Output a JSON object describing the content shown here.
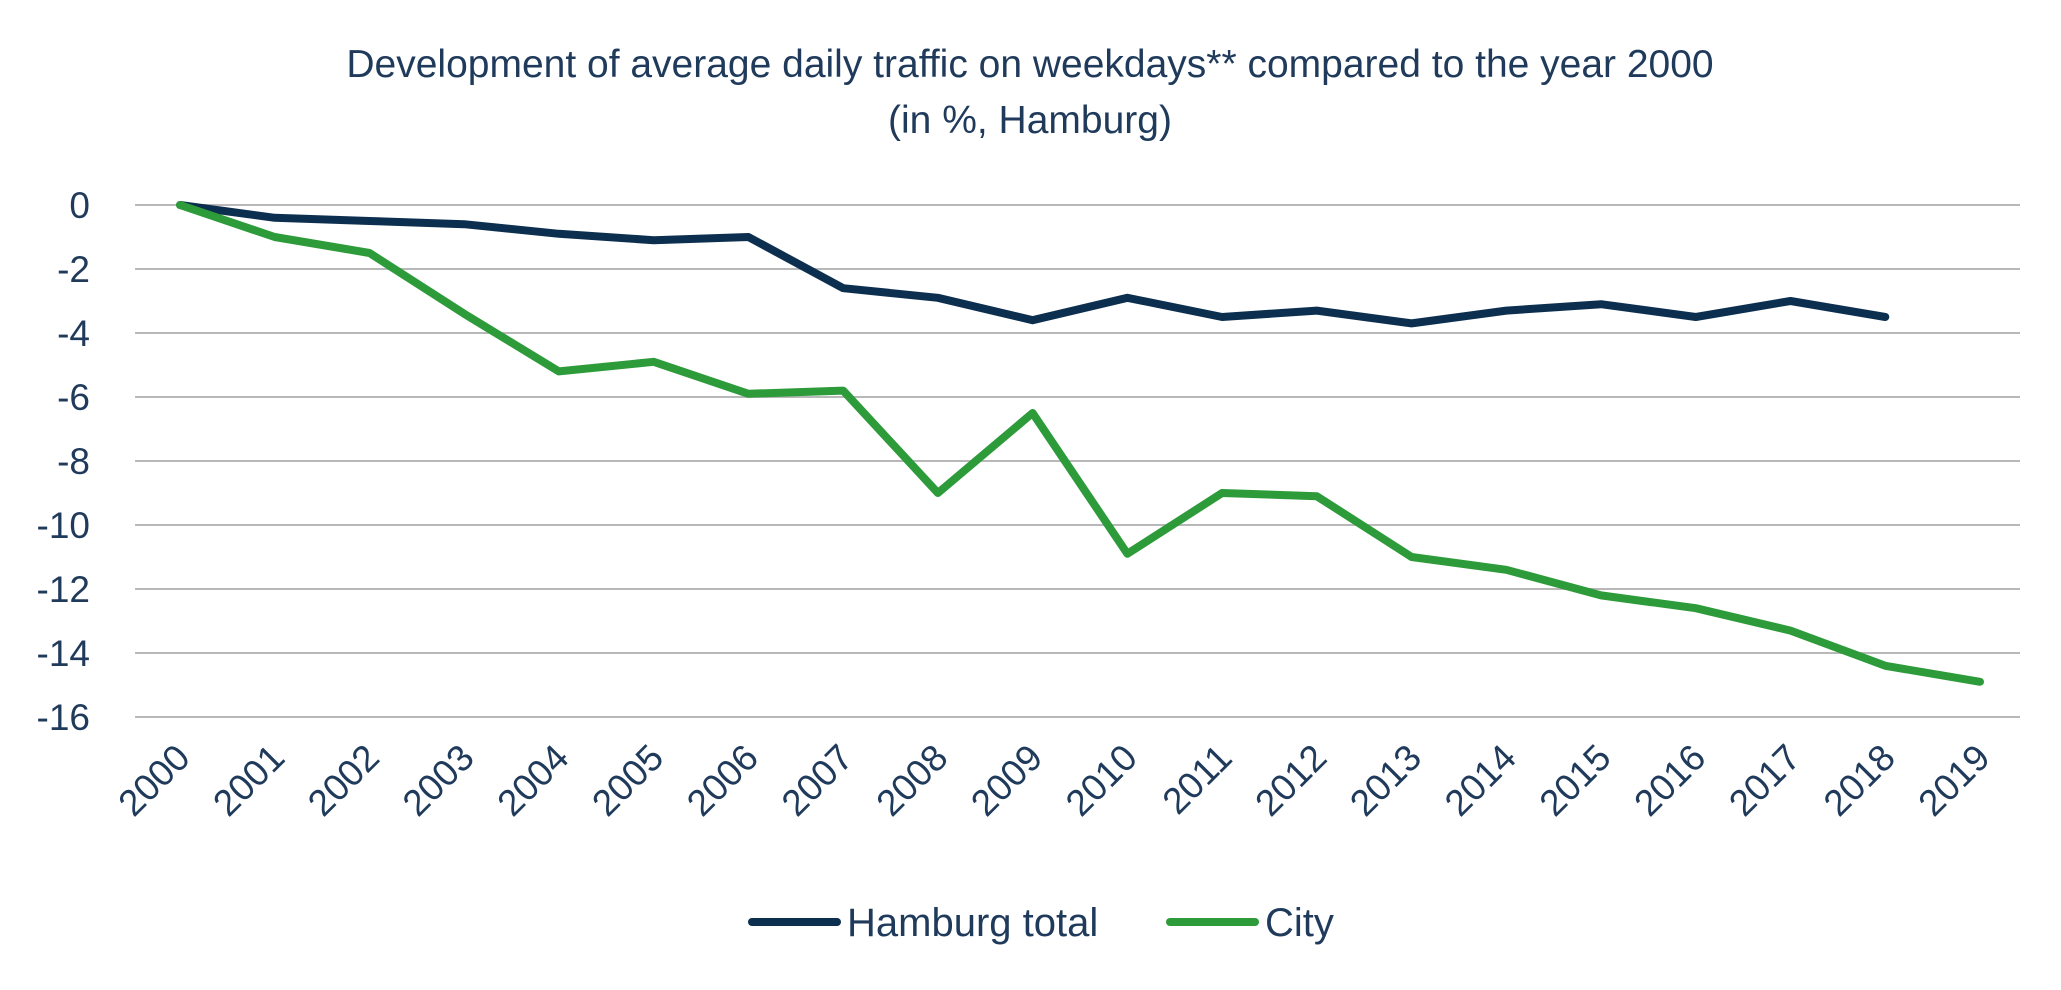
{
  "chart_data": {
    "type": "line",
    "title": "Development of average daily traffic on weekdays** compared to the year 2000",
    "subtitle": "(in %, Hamburg)",
    "xlabel": "",
    "ylabel": "",
    "x": [
      "2000",
      "2001",
      "2002",
      "2003",
      "2004",
      "2005",
      "2006",
      "2007",
      "2008",
      "2009",
      "2010",
      "2011",
      "2012",
      "2013",
      "2014",
      "2015",
      "2016",
      "2017",
      "2018",
      "2019"
    ],
    "ylim": [
      -16,
      0
    ],
    "yticks": [
      0,
      -2,
      -4,
      -6,
      -8,
      -10,
      -12,
      -14,
      -16
    ],
    "grid": true,
    "legend_position": "bottom",
    "series": [
      {
        "name": "Hamburg total",
        "color": "#0d2f4f",
        "values": [
          0,
          -0.4,
          -0.5,
          -0.6,
          -0.9,
          -1.1,
          -1.0,
          -2.6,
          -2.9,
          -3.6,
          -2.9,
          -3.5,
          -3.3,
          -3.7,
          -3.3,
          -3.1,
          -3.5,
          -3.0,
          -3.5,
          null
        ]
      },
      {
        "name": "City",
        "color": "#2e9b3a",
        "values": [
          0,
          -1.0,
          -1.5,
          -3.4,
          -5.2,
          -4.9,
          -5.9,
          -5.8,
          -9.0,
          -6.5,
          -10.9,
          -9.0,
          -9.1,
          -11.0,
          -11.4,
          -12.2,
          -12.6,
          -13.3,
          -14.4,
          -14.9
        ]
      }
    ]
  }
}
